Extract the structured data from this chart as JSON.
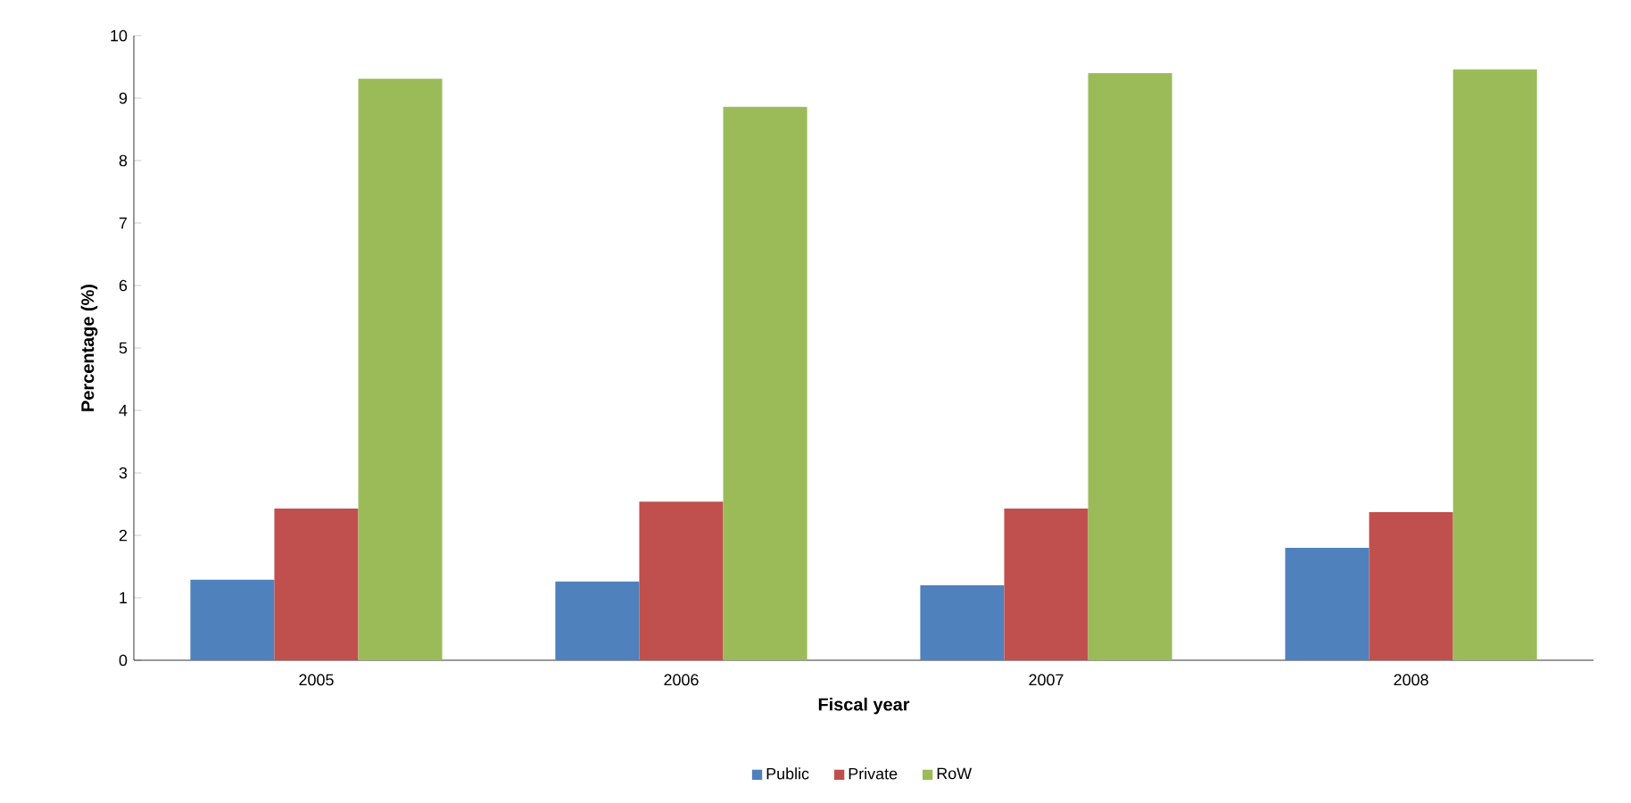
{
  "chart_data": {
    "type": "bar",
    "xlabel": "Fiscal year",
    "ylabel": "Percentage (%)",
    "categories": [
      "2005",
      "2006",
      "2007",
      "2008"
    ],
    "series": [
      {
        "name": "Public",
        "color": "#4f81bd",
        "values": [
          1.29,
          1.26,
          1.2,
          1.8
        ]
      },
      {
        "name": "Private",
        "color": "#c0504d",
        "values": [
          2.43,
          2.54,
          2.43,
          2.37
        ]
      },
      {
        "name": "RoW",
        "color": "#9bbb59",
        "values": [
          9.31,
          8.86,
          9.4,
          9.46
        ]
      }
    ],
    "ylim": [
      0,
      10
    ],
    "yticks": [
      0,
      1,
      2,
      3,
      4,
      5,
      6,
      7,
      8,
      9,
      10
    ],
    "grid": false,
    "legend": "bottom"
  }
}
